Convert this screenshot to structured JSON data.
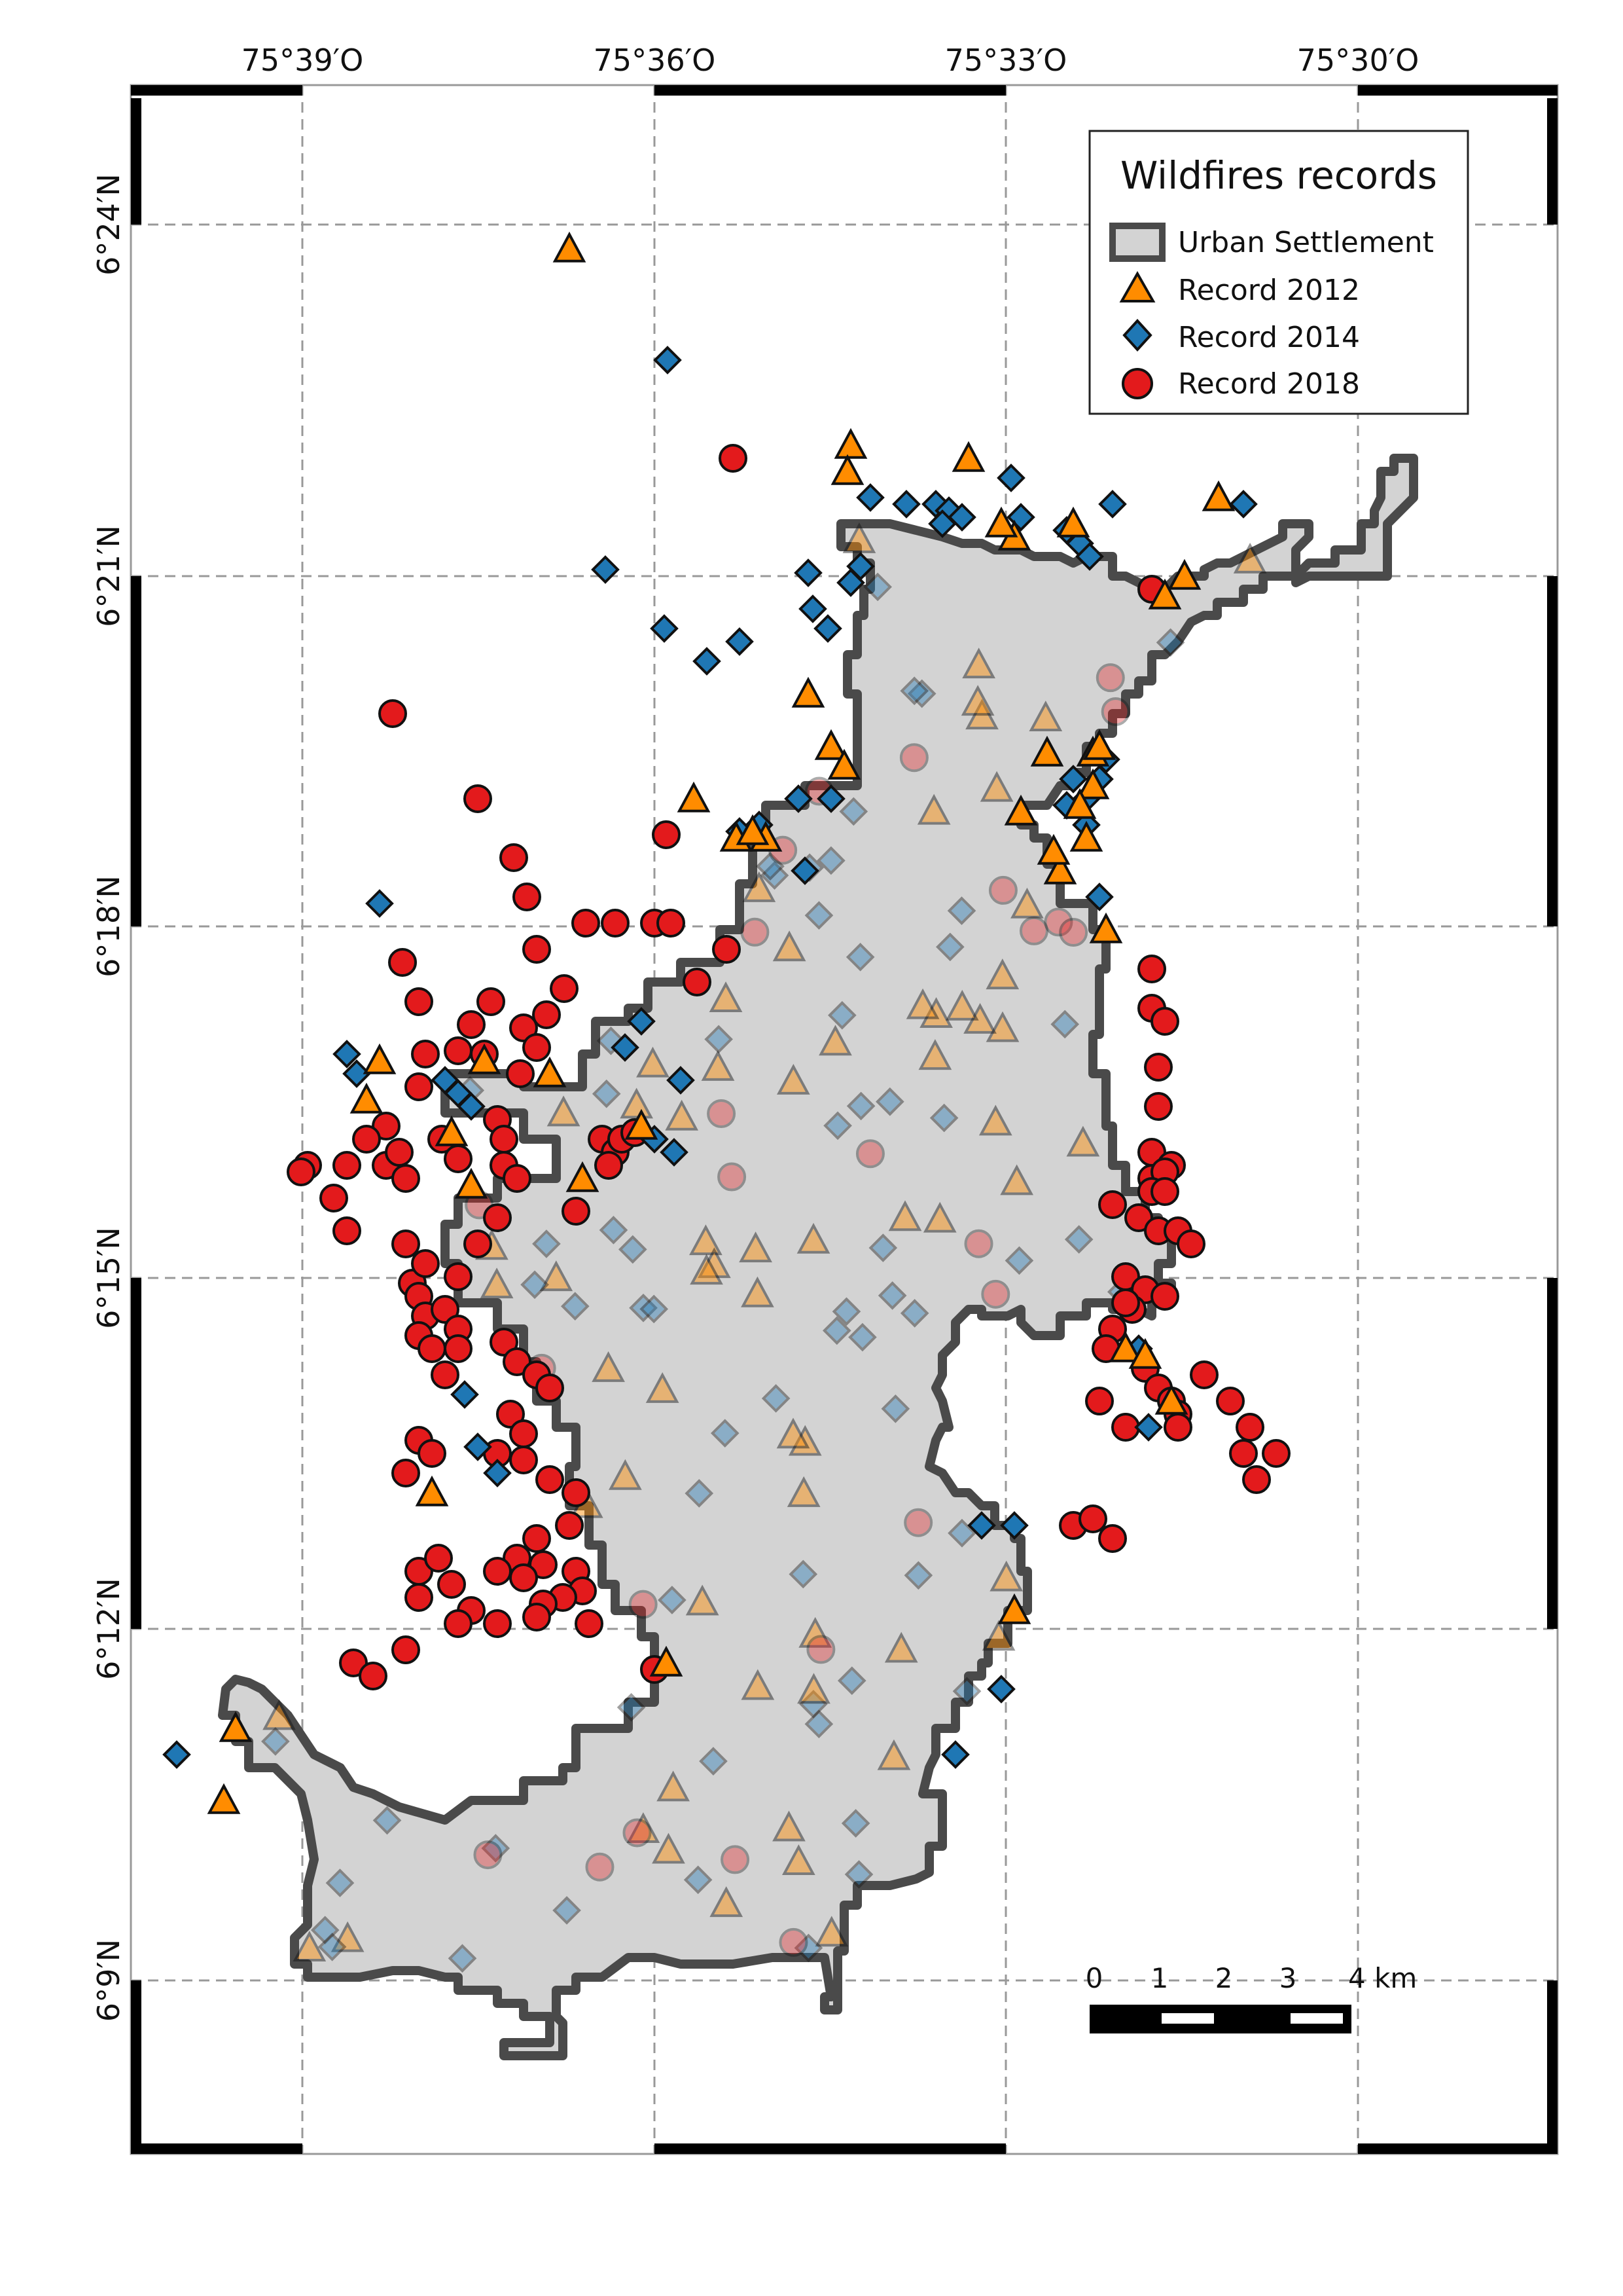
{
  "map": {
    "longitude_labels": [
      "75°39′O",
      "75°36′O",
      "75°33′O",
      "75°30′O"
    ],
    "latitude_labels": [
      "6°24′N",
      "6°21′N",
      "6°18′N",
      "6°15′N",
      "6°12′N",
      "6°9′N"
    ],
    "colors": {
      "urban_fill": "#d3d3d3",
      "urban_stroke": "#4a4a4a",
      "record_2012": "#ff8c00",
      "record_2014": "#1f77b4",
      "record_2018": "#e31a1c",
      "grid": "#999999"
    }
  },
  "legend": {
    "title": "Wildfires records",
    "items": [
      {
        "label": "Urban Settlement",
        "symbol": "polygon"
      },
      {
        "label": "Record 2012",
        "symbol": "triangle"
      },
      {
        "label": "Record 2014",
        "symbol": "diamond"
      },
      {
        "label": "Record 2018",
        "symbol": "circle"
      }
    ]
  },
  "scale_bar": {
    "labels": [
      "0",
      "1",
      "2",
      "3",
      "4 km"
    ]
  }
}
